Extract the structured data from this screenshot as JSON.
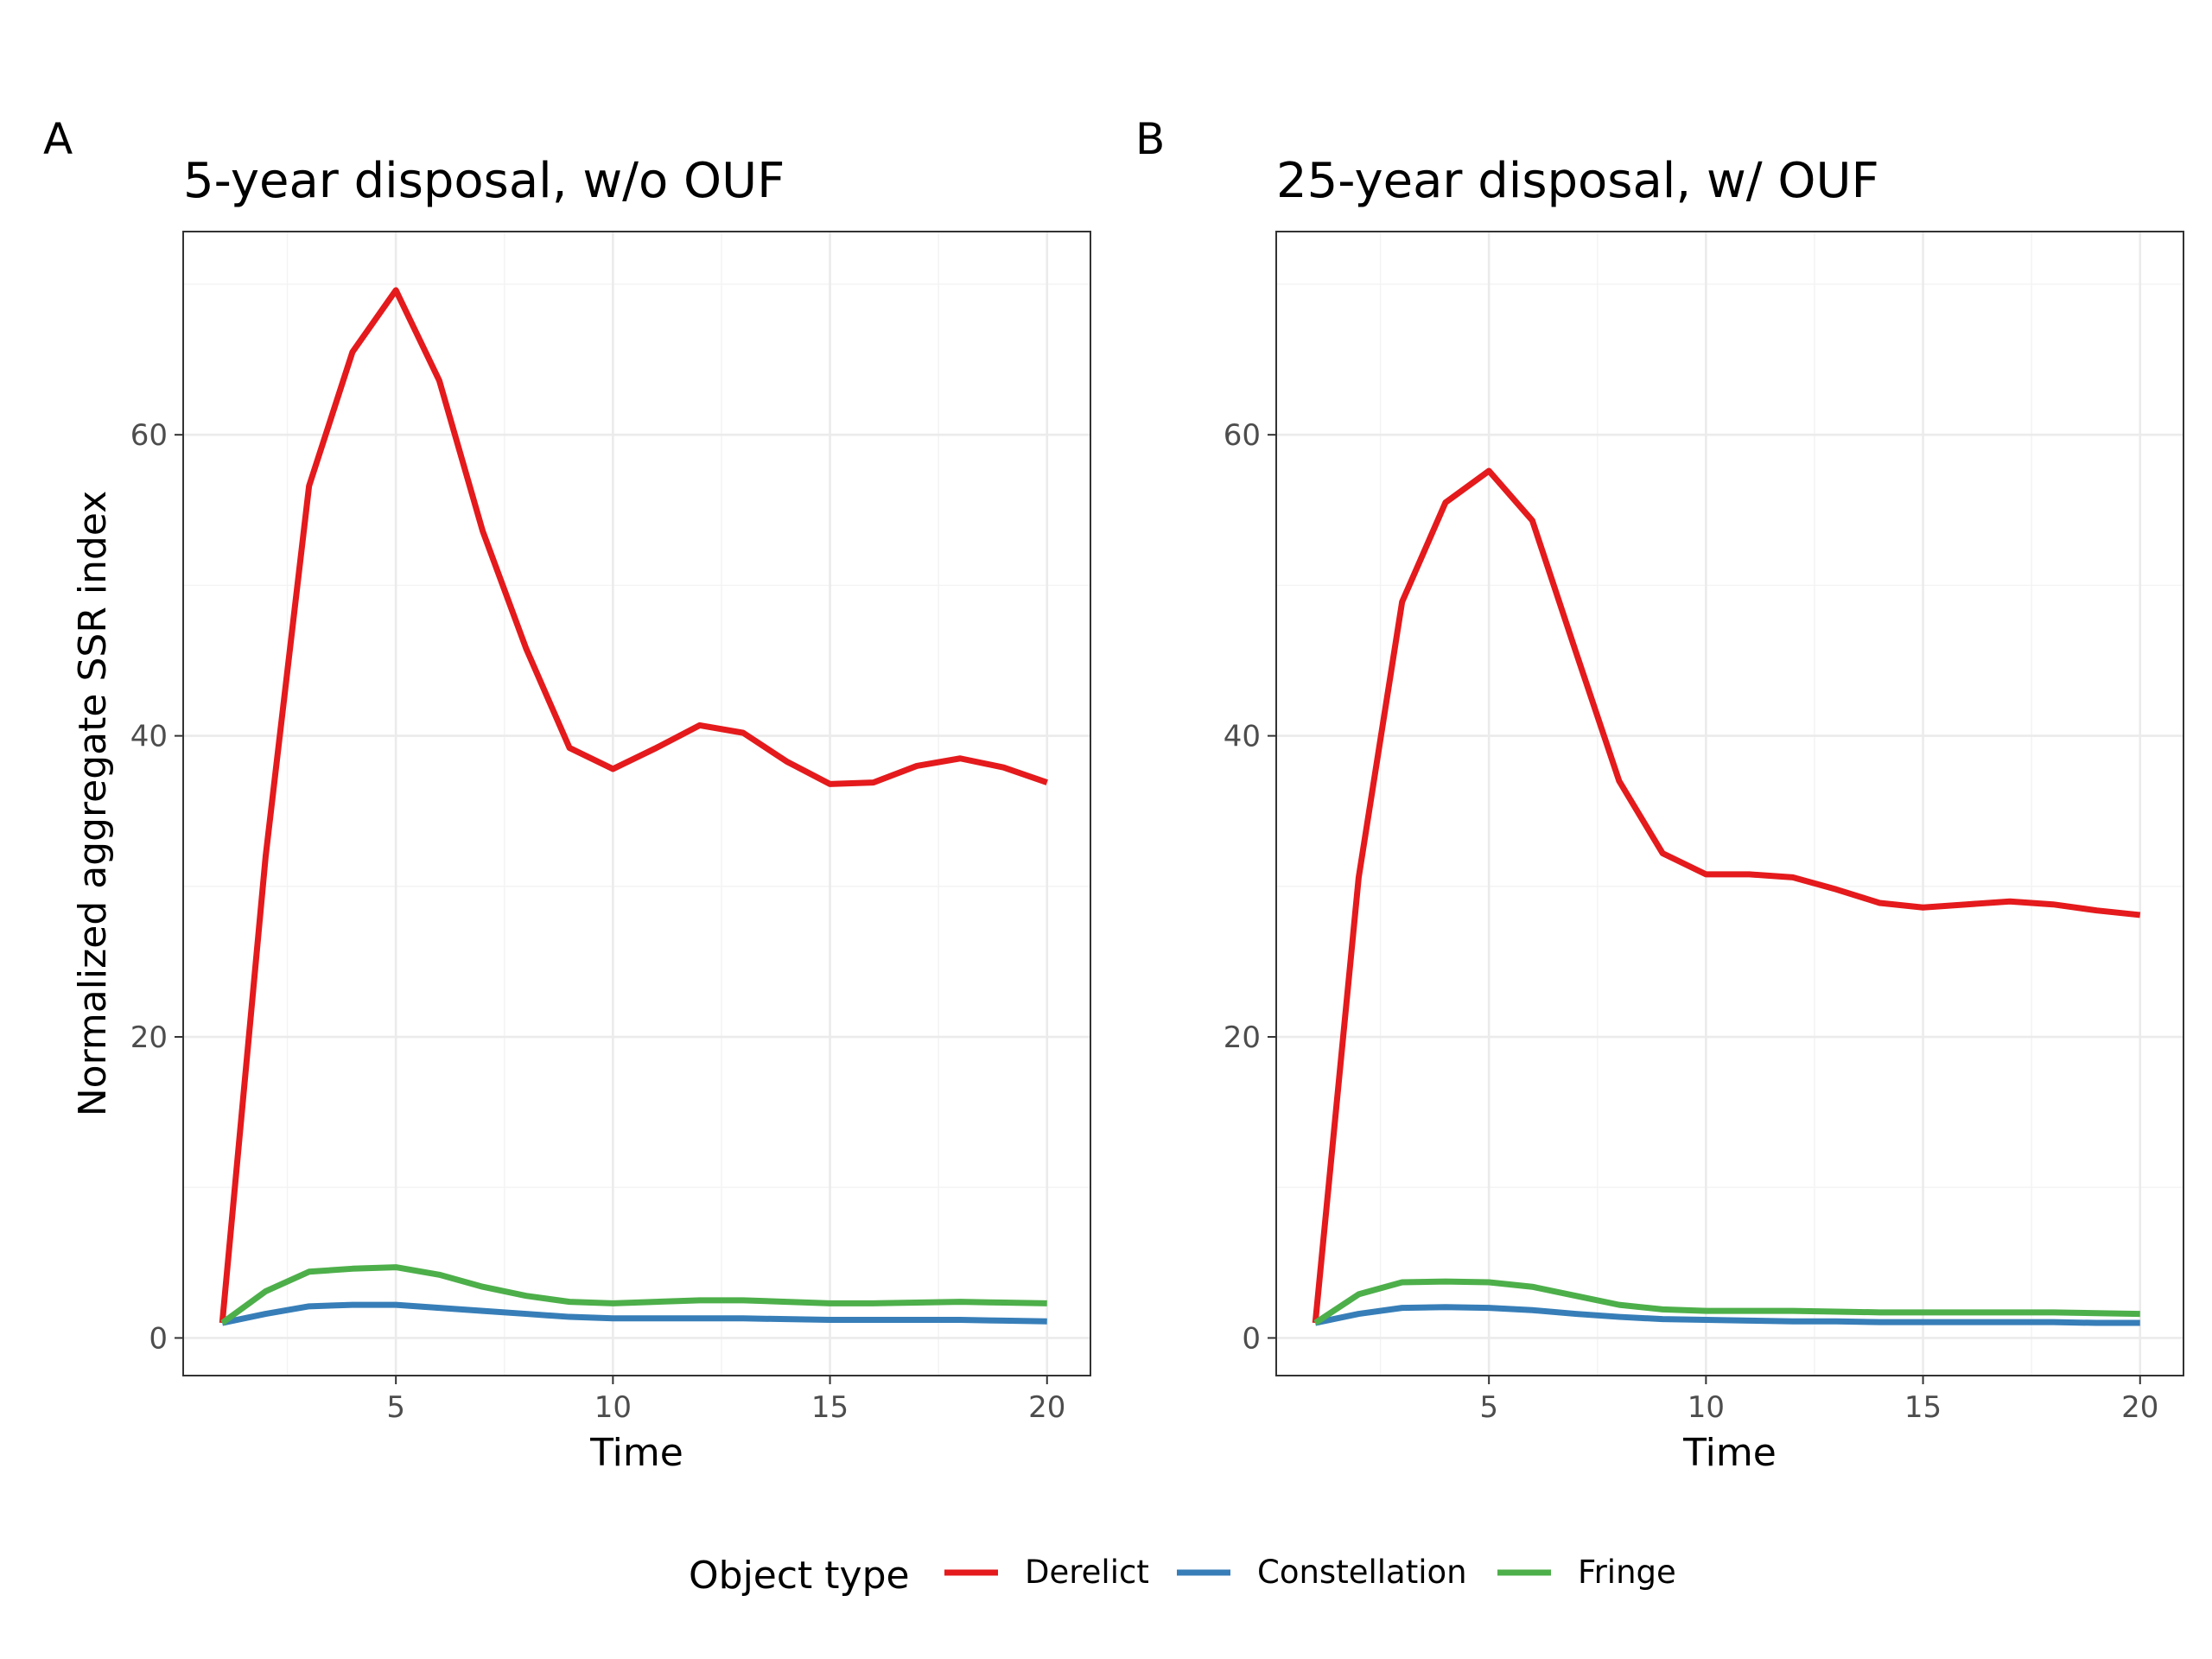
{
  "chart_data": [
    {
      "type": "line",
      "panel_label": "A",
      "title": "5-year disposal, w/o OUF",
      "xlabel": "Time",
      "ylabel": "Normalized aggregate SSR index",
      "xlim": [
        0.1,
        21.0
      ],
      "ylim": [
        -2.5,
        73.5
      ],
      "x_ticks": [
        5,
        10,
        15,
        20
      ],
      "y_ticks": [
        0,
        20,
        40,
        60
      ],
      "grid": true,
      "x": [
        1,
        2,
        3,
        4,
        5,
        6,
        7,
        8,
        9,
        10,
        11,
        12,
        13,
        14,
        15,
        16,
        17,
        18,
        19,
        20
      ],
      "series": [
        {
          "name": "Derelict",
          "color": "#e41a1c",
          "values": [
            1.0,
            32.0,
            56.6,
            65.5,
            69.6,
            63.6,
            53.6,
            45.8,
            39.2,
            37.8,
            39.2,
            40.7,
            40.2,
            38.3,
            36.8,
            36.9,
            38.0,
            38.5,
            37.9,
            36.9
          ]
        },
        {
          "name": "Constellation",
          "color": "#377eb8",
          "values": [
            1.0,
            1.6,
            2.1,
            2.2,
            2.2,
            2.0,
            1.8,
            1.6,
            1.4,
            1.3,
            1.3,
            1.3,
            1.3,
            1.25,
            1.2,
            1.2,
            1.2,
            1.2,
            1.15,
            1.1
          ]
        },
        {
          "name": "Fringe",
          "color": "#4daf4a",
          "values": [
            1.0,
            3.1,
            4.4,
            4.6,
            4.7,
            4.2,
            3.4,
            2.8,
            2.4,
            2.3,
            2.4,
            2.5,
            2.5,
            2.4,
            2.3,
            2.3,
            2.35,
            2.4,
            2.35,
            2.3
          ]
        }
      ]
    },
    {
      "type": "line",
      "panel_label": "B",
      "title": "25-year disposal, w/ OUF",
      "xlabel": "Time",
      "ylabel": "",
      "xlim": [
        0.1,
        21.0
      ],
      "ylim": [
        -2.5,
        73.5
      ],
      "x_ticks": [
        5,
        10,
        15,
        20
      ],
      "y_ticks": [
        0,
        20,
        40,
        60
      ],
      "grid": true,
      "x": [
        1,
        2,
        3,
        4,
        5,
        6,
        7,
        8,
        9,
        10,
        11,
        12,
        13,
        14,
        15,
        16,
        17,
        18,
        19,
        20
      ],
      "series": [
        {
          "name": "Derelict",
          "color": "#e41a1c",
          "values": [
            1.0,
            30.6,
            48.9,
            55.5,
            57.6,
            54.3,
            45.6,
            37.0,
            32.2,
            30.8,
            30.8,
            30.6,
            29.8,
            28.9,
            28.6,
            28.8,
            29.0,
            28.8,
            28.4,
            28.1
          ]
        },
        {
          "name": "Constellation",
          "color": "#377eb8",
          "values": [
            1.0,
            1.6,
            2.0,
            2.05,
            2.0,
            1.85,
            1.6,
            1.4,
            1.25,
            1.2,
            1.15,
            1.1,
            1.1,
            1.05,
            1.05,
            1.05,
            1.05,
            1.05,
            1.0,
            1.0
          ]
        },
        {
          "name": "Fringe",
          "color": "#4daf4a",
          "values": [
            1.0,
            2.9,
            3.7,
            3.75,
            3.7,
            3.4,
            2.8,
            2.2,
            1.9,
            1.8,
            1.8,
            1.8,
            1.75,
            1.7,
            1.7,
            1.7,
            1.7,
            1.7,
            1.65,
            1.6
          ]
        }
      ]
    }
  ],
  "legend": {
    "title": "Object type",
    "placement": "bottom",
    "items": [
      {
        "label": "Derelict",
        "color": "#e41a1c"
      },
      {
        "label": "Constellation",
        "color": "#377eb8"
      },
      {
        "label": "Fringe",
        "color": "#4daf4a"
      }
    ]
  }
}
